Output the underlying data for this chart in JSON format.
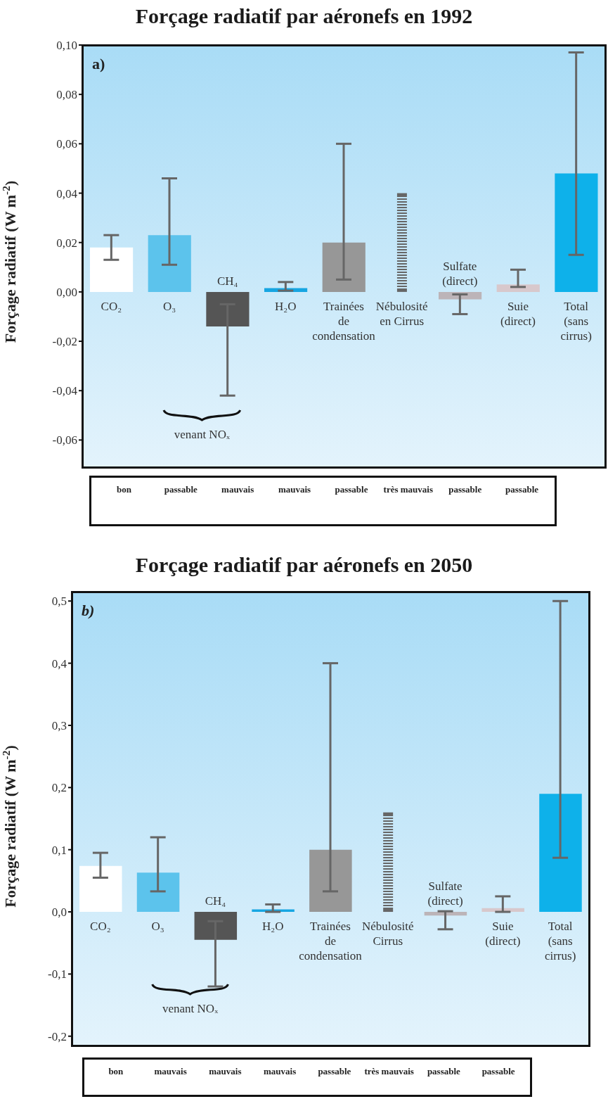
{
  "chart_data": [
    {
      "type": "bar",
      "title": "Forçage radiatif par aéronefs en 1992",
      "ylabel": "Forçage radiatif (W m$^{-2}$)",
      "categories": [
        "CO₂",
        "O₃",
        "CH₄",
        "H₂O",
        "Trainées de condensation",
        "Nébulosité en Cirrus",
        "Sulfate (direct)",
        "Suie (direct)",
        "Total (sans cirrus)"
      ],
      "series": [
        {
          "values": [
            0.018,
            0.023,
            -0.014,
            0.0015,
            0.02,
            null,
            -0.003,
            0.003,
            0.048
          ],
          "colors": [
            "#ffffff",
            "#5cc3ec",
            "#555555",
            "#16a6e2",
            "#979797",
            null,
            "#bcb4b8",
            "#d8c8cc",
            "#0eb1ea"
          ],
          "errors": [
            [
              0.013,
              0.023
            ],
            [
              0.011,
              0.046
            ],
            [
              -0.042,
              -0.005
            ],
            [
              0.0005,
              0.004
            ],
            [
              0.005,
              0.06
            ],
            null,
            [
              -0.009,
              -0.001
            ],
            [
              0.002,
              0.009
            ],
            [
              0.015,
              0.097
            ]
          ]
        },
        {
          "values": [
            null,
            null,
            null,
            null,
            null,
            0.04,
            null,
            null,
            null
          ],
          "color": "#666666",
          "line_style": "dotted"
        }
      ],
      "ylim": [
        -0.071,
        0.1
      ],
      "yticks": [
        {
          "value": 0.1,
          "label": "0,10"
        },
        {
          "value": 0.08,
          "label": "0,08"
        },
        {
          "value": 0.06,
          "label": "0,06"
        },
        {
          "value": 0.04,
          "label": "0,04"
        },
        {
          "value": 0.02,
          "label": "0,02"
        },
        {
          "value": 0,
          "label": "0,00"
        },
        {
          "value": -0.02,
          "label": "-0,02"
        },
        {
          "value": -0.04,
          "label": "-0,04"
        },
        {
          "value": -0.06,
          "label": "-0,06"
        }
      ],
      "annotations": [
        "a)",
        "venant NOₓ",
        "bon",
        "passable",
        "mauvais",
        "mauvais",
        "passable",
        "très mauvais",
        "passable",
        "passable"
      ]
    },
    {
      "type": "bar",
      "title": "Forçage radiatif par aéronefs en 2050",
      "ylabel": "Forçage radiatif (W m$^{-2}$)",
      "categories": [
        "CO₂",
        "O₃",
        "CH₄",
        "H₂O",
        "Trainées de condensation",
        "Nébulosité Cirrus",
        "Sulfate (direct)",
        "Suie (direct)",
        "Total (sans cirrus)"
      ],
      "series": [
        {
          "values": [
            0.074,
            0.063,
            -0.045,
            0.004,
            0.1,
            null,
            -0.006,
            0.006,
            0.19
          ],
          "colors": [
            "#ffffff",
            "#5cc3ec",
            "#555555",
            "#16a6e2",
            "#979797",
            null,
            "#bcb4b8",
            "#d8c8cc",
            "#0eb1ea"
          ],
          "errors": [
            [
              0.055,
              0.095
            ],
            [
              0.033,
              0.12
            ],
            [
              -0.12,
              -0.015
            ],
            [
              0,
              0.012
            ],
            [
              0.033,
              0.4
            ],
            null,
            [
              -0.028,
              0.001
            ],
            [
              0,
              0.025
            ],
            [
              0.087,
              0.5
            ]
          ]
        },
        {
          "values": [
            null,
            null,
            null,
            null,
            null,
            0.16,
            null,
            null,
            null
          ],
          "color": "#666666",
          "line_style": "dotted"
        }
      ],
      "ylim": [
        -0.215,
        0.515
      ],
      "yticks": [
        {
          "value": 0.5,
          "label": "0,5"
        },
        {
          "value": 0.4,
          "label": "0,4"
        },
        {
          "value": 0.3,
          "label": "0,3"
        },
        {
          "value": 0.2,
          "label": "0,2"
        },
        {
          "value": 0.1,
          "label": "0,1"
        },
        {
          "value": 0,
          "label": "0,0"
        },
        {
          "value": -0.1,
          "label": "-0,1"
        },
        {
          "value": -0.2,
          "label": "-0,2"
        }
      ],
      "annotations": [
        "b)",
        "venant NOₓ",
        "bon",
        "mauvais",
        "mauvais",
        "mauvais",
        "passable",
        "très mauvais",
        "passable",
        "passable"
      ]
    }
  ]
}
